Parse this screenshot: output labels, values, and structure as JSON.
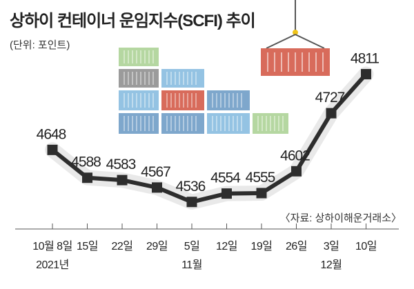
{
  "chart_data": {
    "type": "line",
    "title": "상하이 컨테이너 운임지수(SCFI) 추이",
    "subtitle": "(단위: 포인트)",
    "source": "〈자료: 상하이해운거래소〉",
    "categories": [
      "10월 8일",
      "15일",
      "22일",
      "29일",
      "5일",
      "12일",
      "19일",
      "26일",
      "3일",
      "10일"
    ],
    "month_labels": [
      "2021년",
      "11월",
      "12월"
    ],
    "values": [
      4648,
      4588,
      4583,
      4567,
      4536,
      4554,
      4555,
      4602,
      4727,
      4811
    ],
    "series": [
      {
        "values": [
          4648,
          4588,
          4583,
          4567,
          4536,
          4554,
          4555,
          4602,
          4727,
          4811
        ]
      }
    ],
    "ylim": [
      4500,
      4840
    ],
    "grid": false,
    "legend": "none"
  },
  "illustration": {
    "name": "shipping-containers-illustration",
    "colors": {
      "green": "#b5d7a1",
      "gray": "#9b9b9b",
      "blue": "#94c3e3",
      "red": "#d86b5b",
      "steel": "#7ea7cc",
      "hook": "#f0c419"
    }
  },
  "colors": {
    "line": "#2d2d2d",
    "halo": "#e9e9e9",
    "marker": "#2d2d2d"
  }
}
